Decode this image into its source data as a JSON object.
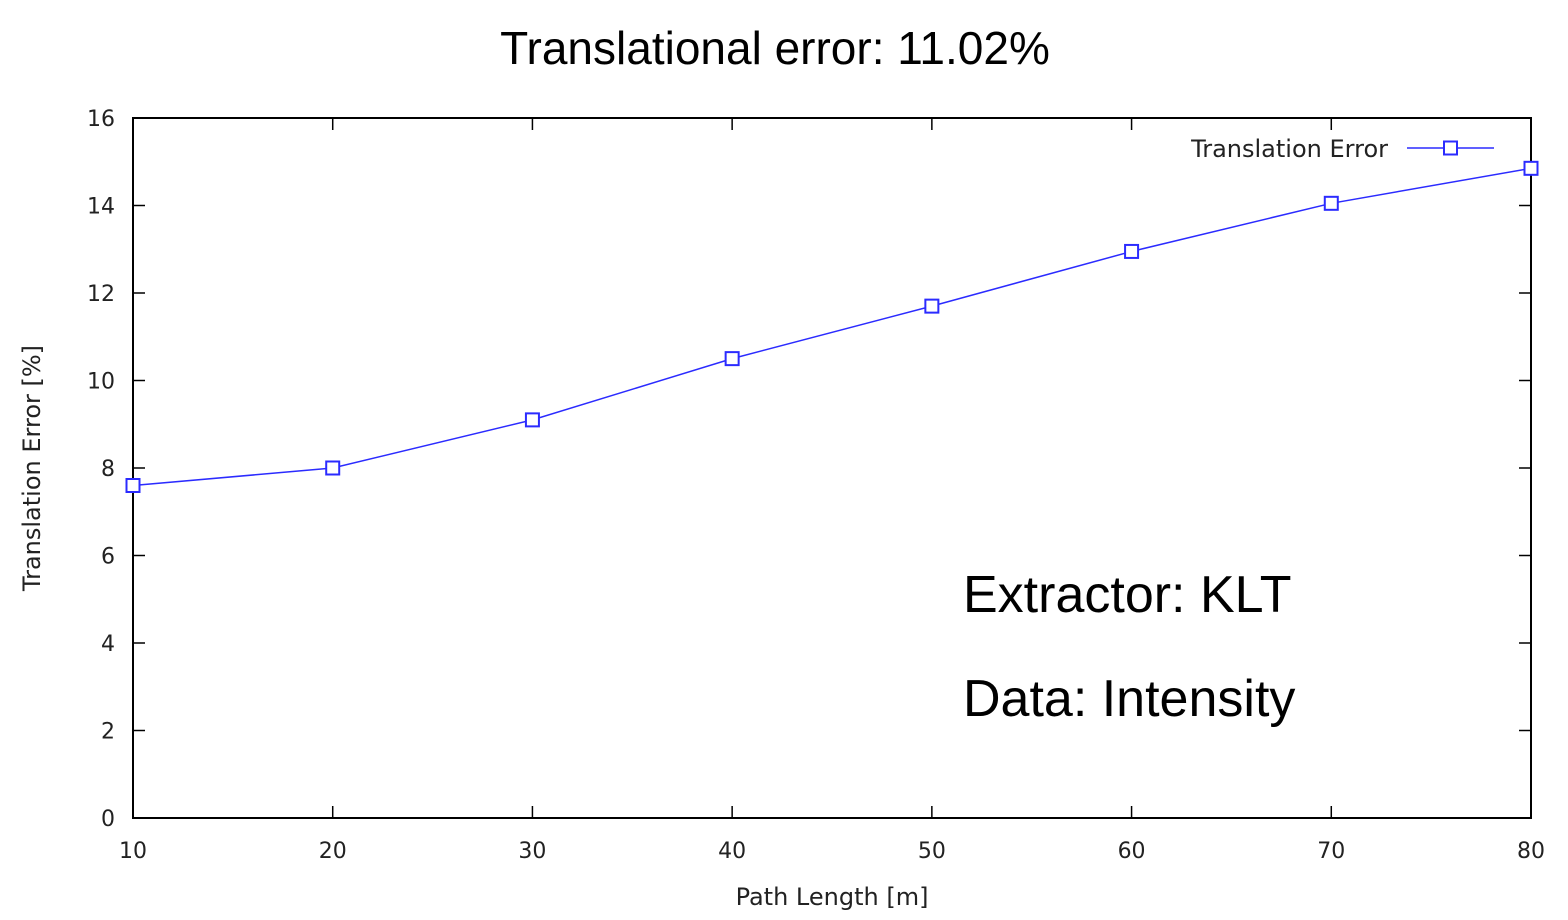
{
  "chart_data": {
    "type": "line",
    "title": "Translational error: 11.02%",
    "xlabel": "Path Length [m]",
    "ylabel": "Translation Error [%]",
    "xlim": [
      10,
      80
    ],
    "ylim": [
      0,
      16
    ],
    "x_ticks": [
      "10",
      "20",
      "30",
      "40",
      "50",
      "60",
      "70",
      "80"
    ],
    "y_ticks": [
      "0",
      "2",
      "4",
      "6",
      "8",
      "10",
      "12",
      "14",
      "16"
    ],
    "grid": false,
    "legend_position": "top-right",
    "marker": "open-square",
    "series": [
      {
        "name": "Translation Error",
        "color": "#2b2bff",
        "x": [
          10,
          20,
          30,
          40,
          50,
          60,
          70,
          80
        ],
        "values": [
          7.6,
          8.0,
          9.1,
          10.5,
          11.7,
          12.95,
          14.05,
          14.85
        ]
      }
    ],
    "annotations": [
      "Extractor: KLT",
      "Data: Intensity"
    ]
  }
}
